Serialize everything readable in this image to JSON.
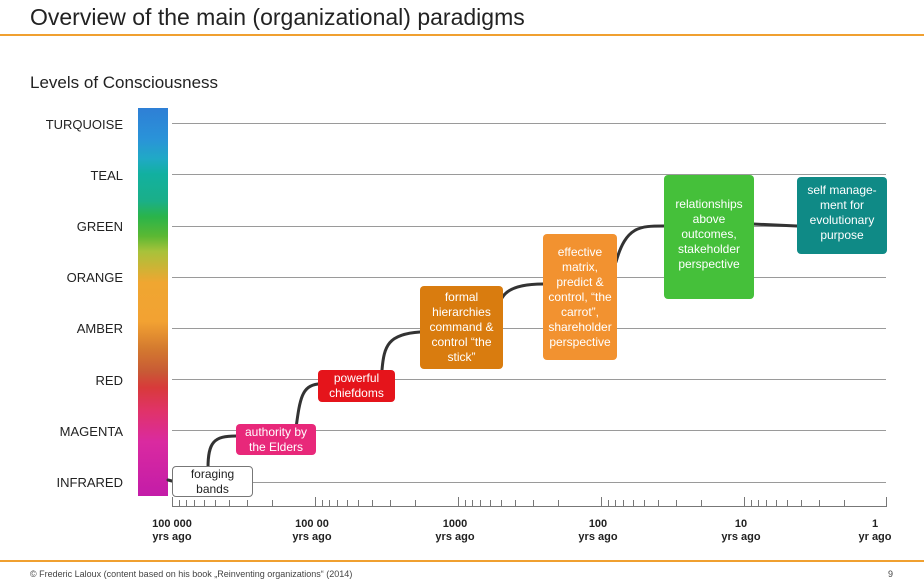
{
  "title": "Overview of the main (organizational) paradigms",
  "subtitle": "Levels of Consciousness",
  "levels": [
    "TURQUOISE",
    "TEAL",
    "GREEN",
    "ORANGE",
    "AMBER",
    "RED",
    "MAGENTA",
    "INFRARED"
  ],
  "x_axis": {
    "labels": [
      {
        "value": "100 000",
        "unit": "yrs ago"
      },
      {
        "value": "100 00",
        "unit": "yrs ago"
      },
      {
        "value": "1000",
        "unit": "yrs ago"
      },
      {
        "value": "100",
        "unit": "yrs ago"
      },
      {
        "value": "10",
        "unit": "yrs ago"
      },
      {
        "value": "1",
        "unit": "yr ago"
      }
    ]
  },
  "paradigms": [
    {
      "level": "INFRARED",
      "text": "foraging bands",
      "color": "#ffffff"
    },
    {
      "level": "MAGENTA",
      "text": "authority by the Elders",
      "color": "#e8287a"
    },
    {
      "level": "RED",
      "text": "powerful chiefdoms",
      "color": "#e5141b"
    },
    {
      "level": "AMBER",
      "text": "formal hierarchies command & control “the stick”",
      "color": "#d97c0f"
    },
    {
      "level": "ORANGE",
      "text": "effective matrix, predict & control, “the carrot”, shareholder perspective",
      "color": "#f29230"
    },
    {
      "level": "GREEN",
      "text": "relationships above outcomes, stakeholder perspective",
      "color": "#45c03a"
    },
    {
      "level": "TEAL",
      "text": "self manage-ment for evolutionary purpose",
      "color": "#0f8a86"
    }
  ],
  "footer": "© Frederic Laloux (content based on his book „Reinventing organizations“ (2014)",
  "page_number": "9"
}
